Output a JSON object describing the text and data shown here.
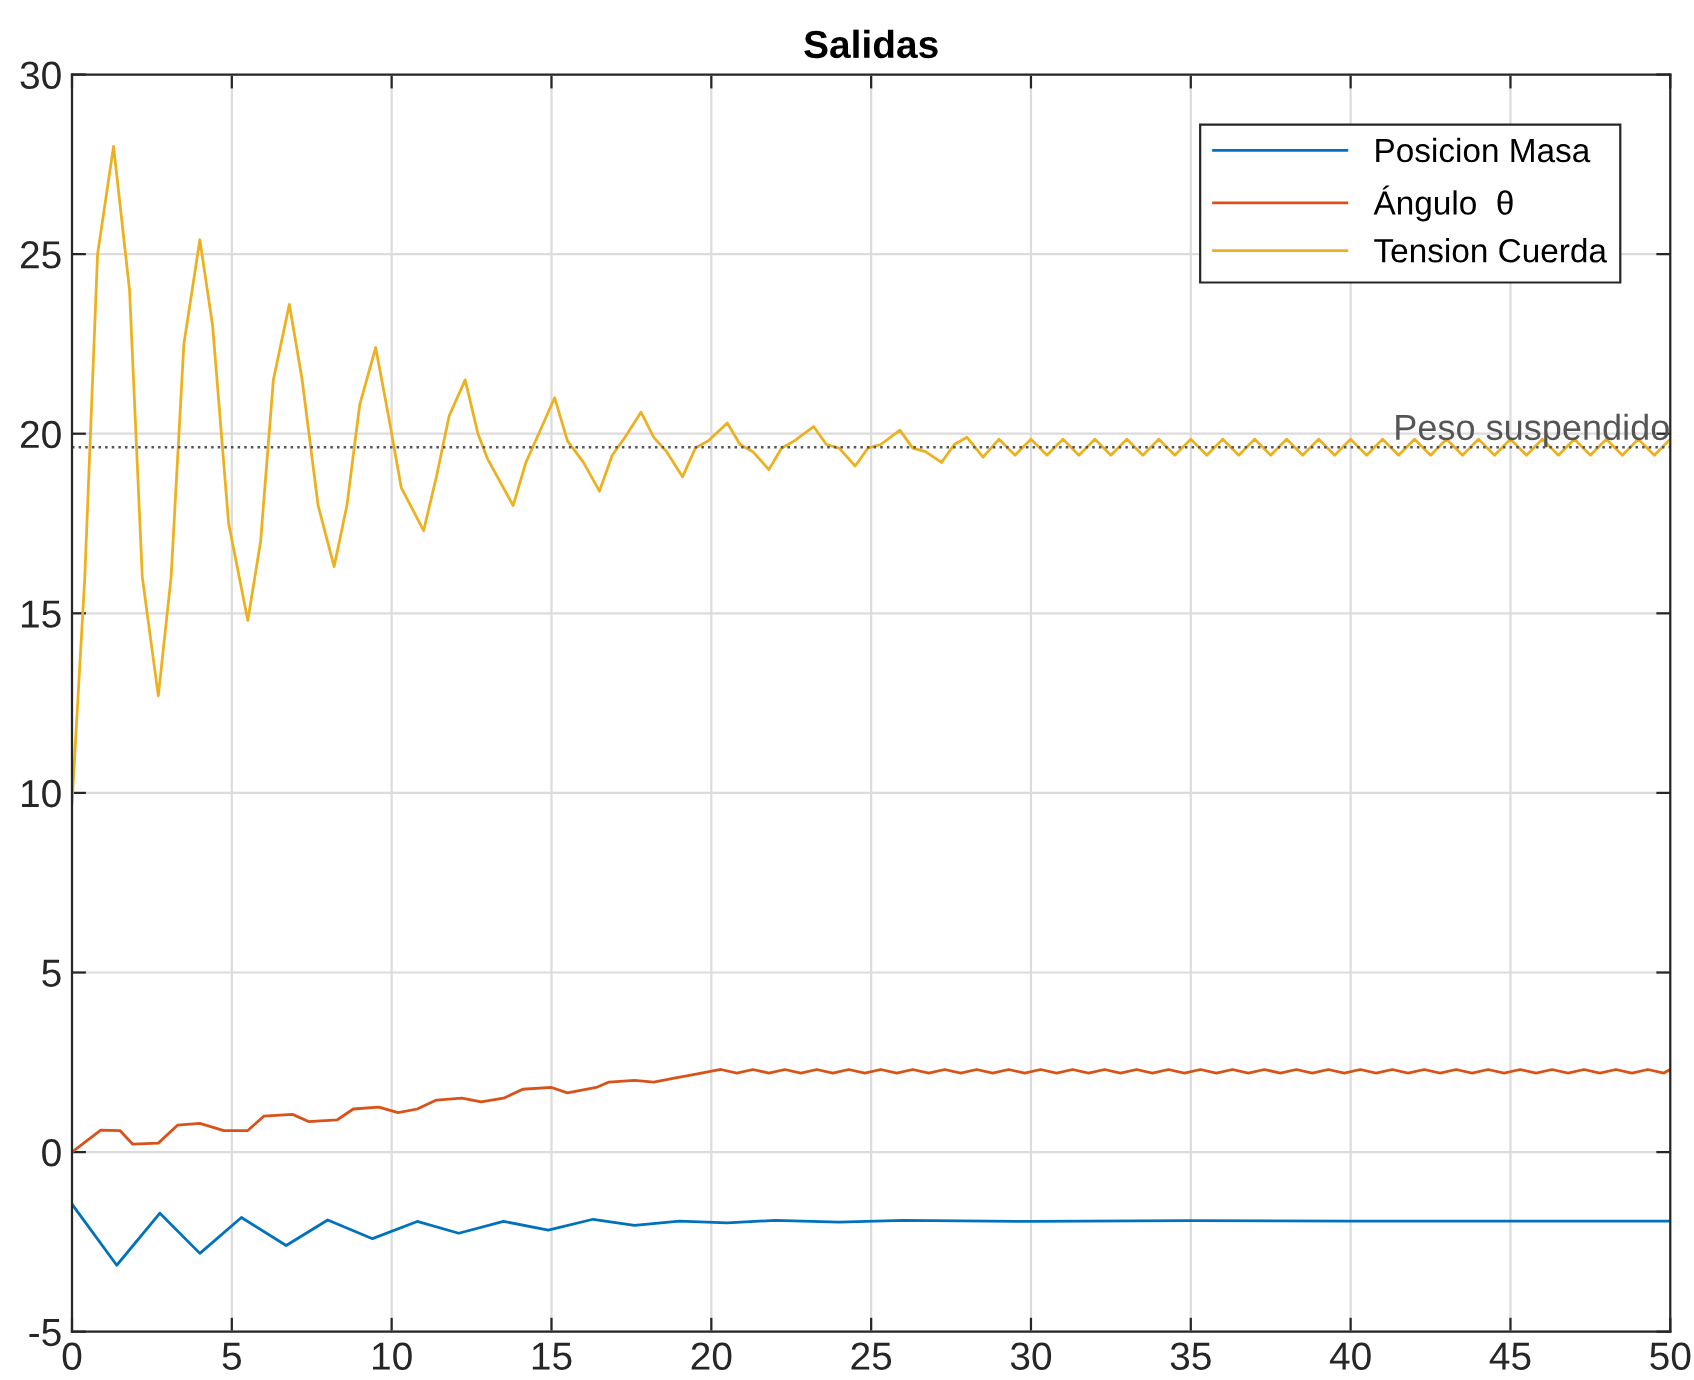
{
  "chart_data": {
    "type": "line",
    "title": "Salidas",
    "xlim": [
      0,
      50
    ],
    "xticks": [
      0,
      5,
      10,
      15,
      20,
      25,
      30,
      35,
      40,
      45,
      50
    ],
    "ylim": [
      -5,
      30
    ],
    "yticks": [
      -5,
      0,
      5,
      10,
      15,
      20,
      25,
      30
    ],
    "grid": true,
    "legend": "top right",
    "line_style": "solid",
    "ref_lines": [
      {
        "axis": "y",
        "value": 19.62,
        "label": "Peso suspendido",
        "color": "#555555",
        "line_style": "dotted"
      }
    ],
    "series": [
      {
        "name": "Posicion Masa",
        "color": "#0072bd",
        "x": [
          0,
          1.4,
          2.75,
          4.0,
          5.3,
          6.7,
          8.0,
          9.4,
          10.8,
          12.1,
          13.5,
          14.9,
          16.3,
          17.6,
          19,
          20.5,
          22,
          24,
          26,
          30,
          35,
          40,
          45,
          50
        ],
        "values": [
          -1.45,
          -3.15,
          -1.7,
          -2.82,
          -1.82,
          -2.6,
          -1.89,
          -2.41,
          -1.93,
          -2.26,
          -1.93,
          -2.17,
          -1.87,
          -2.04,
          -1.92,
          -1.97,
          -1.9,
          -1.95,
          -1.9,
          -1.93,
          -1.91,
          -1.92,
          -1.92,
          -1.92
        ]
      },
      {
        "name": "Ángulo  θ",
        "color": "#d95319",
        "x": [
          0,
          0.9,
          1.5,
          1.9,
          2.7,
          3.3,
          4.0,
          4.75,
          5.5,
          6.0,
          6.9,
          7.4,
          8.3,
          8.8,
          9.6,
          10.2,
          10.8,
          11.4,
          12.2,
          12.8,
          13.5,
          14.1,
          15.0,
          15.5,
          16.4,
          16.8,
          17.6,
          18.2,
          18.8,
          19.4,
          20.3,
          20.8,
          21.3,
          21.8,
          22.3,
          22.8,
          23.3,
          23.8,
          24.3,
          24.8,
          25.3,
          25.8,
          26.3,
          26.8,
          27.3,
          27.8,
          28.3,
          28.8,
          29.3,
          29.8,
          30.3,
          30.8,
          31.3,
          31.8,
          32.3,
          32.8,
          33.3,
          33.8,
          34.3,
          34.8,
          35.3,
          35.8,
          36.3,
          36.8,
          37.3,
          37.8,
          38.3,
          38.8,
          39.3,
          39.8,
          40.3,
          40.8,
          41.3,
          41.8,
          42.3,
          42.8,
          43.3,
          43.8,
          44.3,
          44.8,
          45.3,
          45.8,
          46.3,
          46.8,
          47.3,
          47.8,
          48.3,
          48.8,
          49.3,
          49.8,
          50
        ],
        "values": [
          0,
          0.61,
          0.6,
          0.22,
          0.25,
          0.75,
          0.8,
          0.6,
          0.6,
          1.0,
          1.05,
          0.85,
          0.9,
          1.2,
          1.25,
          1.1,
          1.2,
          1.45,
          1.5,
          1.4,
          1.5,
          1.75,
          1.8,
          1.65,
          1.8,
          1.95,
          2.0,
          1.95,
          2.05,
          2.15,
          2.3,
          2.2,
          2.3,
          2.2,
          2.3,
          2.2,
          2.3,
          2.2,
          2.3,
          2.2,
          2.3,
          2.2,
          2.3,
          2.2,
          2.3,
          2.2,
          2.3,
          2.2,
          2.3,
          2.2,
          2.3,
          2.2,
          2.3,
          2.2,
          2.3,
          2.2,
          2.3,
          2.2,
          2.3,
          2.2,
          2.3,
          2.2,
          2.3,
          2.2,
          2.3,
          2.2,
          2.3,
          2.2,
          2.3,
          2.2,
          2.3,
          2.2,
          2.3,
          2.2,
          2.3,
          2.2,
          2.3,
          2.2,
          2.3,
          2.2,
          2.3,
          2.2,
          2.3,
          2.2,
          2.3,
          2.2,
          2.3,
          2.2,
          2.3,
          2.2,
          2.3
        ]
      },
      {
        "name": "Tension Cuerda",
        "color": "#edb120",
        "x": [
          0,
          0.4,
          0.8,
          1.3,
          1.8,
          2.2,
          2.7,
          3.1,
          3.5,
          4.0,
          4.4,
          4.9,
          5.5,
          5.9,
          6.3,
          6.8,
          7.2,
          7.7,
          8.2,
          8.6,
          9.0,
          9.5,
          9.9,
          10.3,
          11.0,
          11.4,
          11.8,
          12.3,
          12.7,
          13.0,
          13.8,
          14.2,
          14.6,
          15.1,
          15.5,
          16.0,
          16.5,
          16.9,
          17.3,
          17.8,
          18.2,
          18.6,
          19.1,
          19.5,
          19.9,
          20.5,
          20.9,
          21.3,
          21.8,
          22.2,
          22.6,
          23.2,
          23.6,
          24.0,
          24.5,
          24.9,
          25.3,
          25.9,
          26.3,
          26.7,
          27.2,
          27.6,
          28.0,
          28.5,
          29.0,
          29.5,
          30.0,
          30.5,
          31.0,
          31.5,
          32.0,
          32.5,
          33.0,
          33.5,
          34.0,
          34.5,
          35.0,
          35.5,
          36.0,
          36.5,
          37.0,
          37.5,
          38.0,
          38.5,
          39.0,
          39.5,
          40.0,
          40.5,
          41.0,
          41.5,
          42.0,
          42.5,
          43.0,
          43.5,
          44.0,
          44.5,
          45.0,
          45.5,
          46.0,
          46.5,
          47.0,
          47.5,
          48.0,
          48.5,
          49.0,
          49.5,
          50.0
        ],
        "values": [
          9.7,
          16,
          25,
          28.0,
          24,
          16,
          12.7,
          16,
          22.5,
          25.4,
          23,
          17.5,
          14.8,
          17,
          21.5,
          23.6,
          21.5,
          18,
          16.3,
          18,
          20.8,
          22.4,
          20.5,
          18.5,
          17.3,
          18.8,
          20.5,
          21.5,
          20.0,
          19.3,
          18.0,
          19.2,
          20.0,
          21.0,
          19.8,
          19.2,
          18.4,
          19.4,
          19.9,
          20.6,
          19.9,
          19.5,
          18.8,
          19.6,
          19.8,
          20.3,
          19.7,
          19.5,
          19.0,
          19.6,
          19.8,
          20.2,
          19.7,
          19.6,
          19.1,
          19.6,
          19.7,
          20.1,
          19.6,
          19.5,
          19.2,
          19.7,
          19.9,
          19.35,
          19.85,
          19.4,
          19.85,
          19.4,
          19.85,
          19.4,
          19.85,
          19.4,
          19.85,
          19.4,
          19.85,
          19.4,
          19.85,
          19.4,
          19.85,
          19.4,
          19.85,
          19.4,
          19.85,
          19.4,
          19.85,
          19.4,
          19.85,
          19.4,
          19.85,
          19.4,
          19.85,
          19.4,
          19.85,
          19.4,
          19.85,
          19.4,
          19.85,
          19.4,
          19.85,
          19.4,
          19.85,
          19.4,
          19.85,
          19.4,
          19.85,
          19.4,
          19.85
        ]
      }
    ]
  }
}
